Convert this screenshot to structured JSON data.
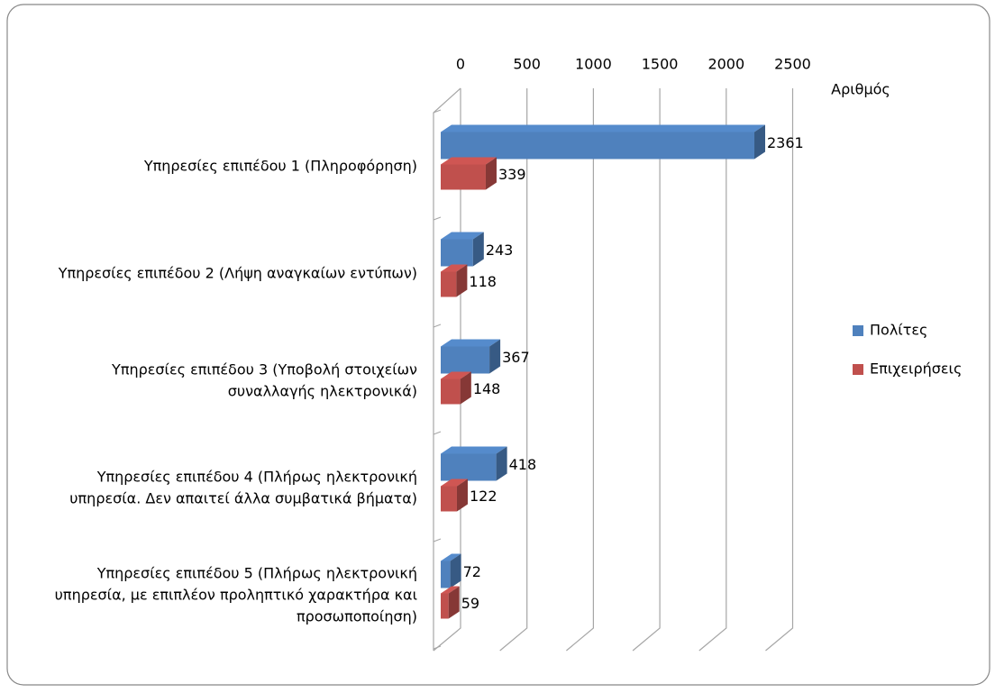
{
  "chart_data": {
    "type": "bar3d_horizontal",
    "categories": [
      "Υπηρεσίες επιπέδου 1 (Πληροφόρηση)",
      "Υπηρεσίες επιπέδου 2 (Λήψη αναγκαίων εντύπων)",
      "Υπηρεσίες επιπέδου 3 (Υποβολή στοιχείων συναλλαγής ηλεκτρονικά)",
      "Υπηρεσίες επιπέδου 4 (Πλήρως ηλεκτρονική υπηρεσία. Δεν απαιτεί άλλα συμβατικά βήματα)",
      "Υπηρεσίες επιπέδου 5 (Πλήρως ηλεκτρονική υπηρεσία, με επιπλέον προληπτικό χαρακτήρα και προσωποποίηση)"
    ],
    "series": [
      {
        "name": "Πολίτες",
        "color": "#4f81bd",
        "values": [
          2361,
          243,
          367,
          418,
          72
        ]
      },
      {
        "name": "Επιχειρήσεις",
        "color": "#c0504d",
        "values": [
          339,
          118,
          148,
          122,
          59
        ]
      }
    ],
    "x_axis_label": "Αριθμός",
    "xlim": [
      0,
      2500
    ],
    "xticks": [
      0,
      500,
      1000,
      1500,
      2000,
      2500
    ],
    "grid": true,
    "legend": "right"
  }
}
